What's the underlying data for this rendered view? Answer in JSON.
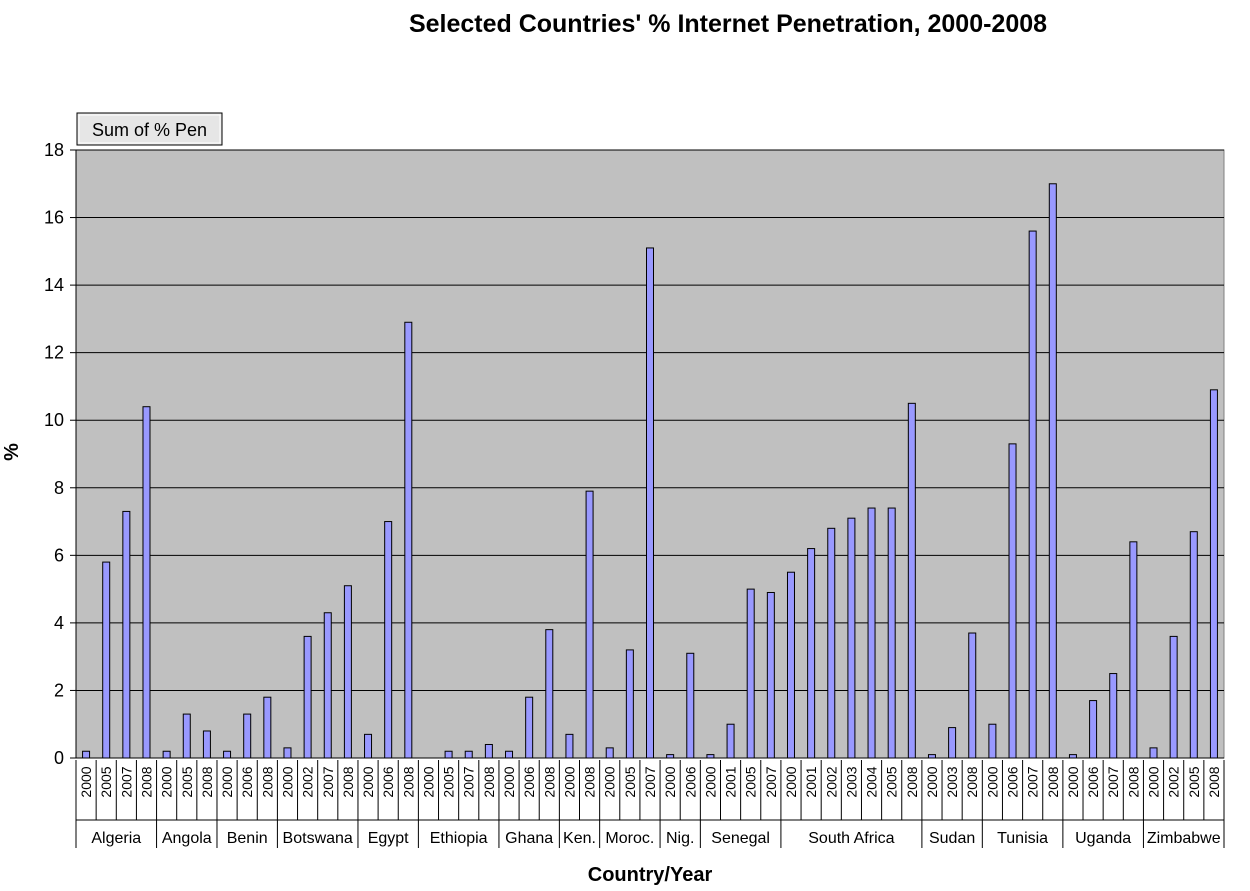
{
  "chart_data": {
    "type": "bar",
    "title": "Selected Countries' % Internet Penetration, 2000-2008",
    "xlabel": "Country/Year",
    "ylabel": "%",
    "ylim": [
      0,
      18
    ],
    "yticks": [
      0,
      2,
      4,
      6,
      8,
      10,
      12,
      14,
      16,
      18
    ],
    "grid": true,
    "field_button": "Sum of % Pen",
    "colors": {
      "bar": "#9999ff",
      "plot_bg": "#c0c0c0",
      "bar_edge": "#000000"
    },
    "groups": [
      {
        "country": "Algeria",
        "bars": [
          {
            "year": "2000",
            "value": 0.2
          },
          {
            "year": "2005",
            "value": 5.8
          },
          {
            "year": "2007",
            "value": 7.3
          },
          {
            "year": "2008",
            "value": 10.4
          }
        ]
      },
      {
        "country": "Angola",
        "bars": [
          {
            "year": "2000",
            "value": 0.2
          },
          {
            "year": "2005",
            "value": 1.3
          },
          {
            "year": "2008",
            "value": 0.8
          }
        ]
      },
      {
        "country": "Benin",
        "bars": [
          {
            "year": "2000",
            "value": 0.2
          },
          {
            "year": "2006",
            "value": 1.3
          },
          {
            "year": "2008",
            "value": 1.8
          }
        ]
      },
      {
        "country": "Botswana",
        "bars": [
          {
            "year": "2000",
            "value": 0.3
          },
          {
            "year": "2002",
            "value": 3.6
          },
          {
            "year": "2007",
            "value": 4.3
          },
          {
            "year": "2008",
            "value": 5.1
          }
        ]
      },
      {
        "country": "Egypt",
        "bars": [
          {
            "year": "2000",
            "value": 0.7
          },
          {
            "year": "2006",
            "value": 7.0
          },
          {
            "year": "2008",
            "value": 12.9
          }
        ]
      },
      {
        "country": "Ethiopia",
        "bars": [
          {
            "year": "2000",
            "value": 0.0
          },
          {
            "year": "2005",
            "value": 0.2
          },
          {
            "year": "2007",
            "value": 0.2
          },
          {
            "year": "2008",
            "value": 0.4
          }
        ]
      },
      {
        "country": "Ghana",
        "bars": [
          {
            "year": "2000",
            "value": 0.2
          },
          {
            "year": "2006",
            "value": 1.8
          },
          {
            "year": "2008",
            "value": 3.8
          }
        ]
      },
      {
        "country": "Ken.",
        "bars": [
          {
            "year": "2000",
            "value": 0.7
          },
          {
            "year": "2008",
            "value": 7.9
          }
        ]
      },
      {
        "country": "Moroc.",
        "bars": [
          {
            "year": "2000",
            "value": 0.3
          },
          {
            "year": "2005",
            "value": 3.2
          },
          {
            "year": "2007",
            "value": 15.1
          }
        ]
      },
      {
        "country": "Nig.",
        "bars": [
          {
            "year": "2000",
            "value": 0.1
          },
          {
            "year": "2006",
            "value": 3.1
          }
        ]
      },
      {
        "country": "Senegal",
        "bars": [
          {
            "year": "2000",
            "value": 0.1
          },
          {
            "year": "2001",
            "value": 1.0
          },
          {
            "year": "2005",
            "value": 5.0
          },
          {
            "year": "2007",
            "value": 4.9
          }
        ]
      },
      {
        "country": "South Africa",
        "bars": [
          {
            "year": "2000",
            "value": 5.5
          },
          {
            "year": "2001",
            "value": 6.2
          },
          {
            "year": "2002",
            "value": 6.8
          },
          {
            "year": "2003",
            "value": 7.1
          },
          {
            "year": "2004",
            "value": 7.4
          },
          {
            "year": "2005",
            "value": 7.4
          },
          {
            "year": "2008",
            "value": 10.5
          }
        ]
      },
      {
        "country": "Sudan",
        "bars": [
          {
            "year": "2000",
            "value": 0.1
          },
          {
            "year": "2003",
            "value": 0.9
          },
          {
            "year": "2008",
            "value": 3.7
          }
        ]
      },
      {
        "country": "Tunisia",
        "bars": [
          {
            "year": "2000",
            "value": 1.0
          },
          {
            "year": "2006",
            "value": 9.3
          },
          {
            "year": "2007",
            "value": 15.6
          },
          {
            "year": "2008",
            "value": 17.0
          }
        ]
      },
      {
        "country": "Uganda",
        "bars": [
          {
            "year": "2000",
            "value": 0.1
          },
          {
            "year": "2006",
            "value": 1.7
          },
          {
            "year": "2007",
            "value": 2.5
          },
          {
            "year": "2008",
            "value": 6.4
          }
        ]
      },
      {
        "country": "Zimbabwe",
        "bars": [
          {
            "year": "2000",
            "value": 0.3
          },
          {
            "year": "2002",
            "value": 3.6
          },
          {
            "year": "2005",
            "value": 6.7
          },
          {
            "year": "2008",
            "value": 10.9
          }
        ]
      }
    ]
  }
}
